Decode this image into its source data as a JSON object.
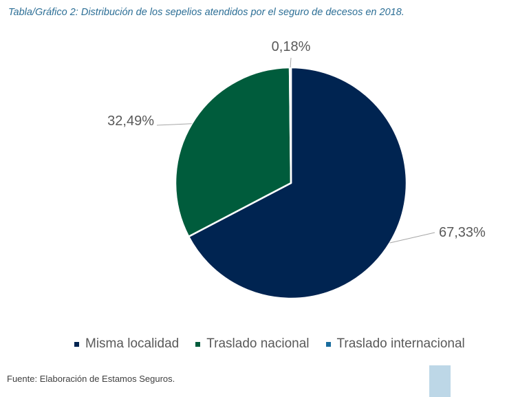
{
  "caption": "Tabla/Gráfico 2: Distribución de los sepelios atendidos por el seguro de decesos en 2018.",
  "source_note": "Fuente: Elaboración de Estamos Seguros.",
  "chart_data": {
    "type": "pie",
    "title": "",
    "start_angle_deg": 0,
    "direction": "clockwise",
    "categories": [
      "Misma localidad",
      "Traslado nacional",
      "Traslado internacional"
    ],
    "values": [
      67.33,
      32.49,
      0.18
    ],
    "value_labels": [
      "67,33%",
      "32,49%",
      "0,18%"
    ],
    "colors": [
      "#002451",
      "#005c3c",
      "#1a6d9e"
    ],
    "legend": "bottom",
    "slice_border": "#ffffff"
  },
  "legend": {
    "items": [
      {
        "label": "Misma localidad",
        "color": "#002451"
      },
      {
        "label": "Traslado nacional",
        "color": "#005c3c"
      },
      {
        "label": "Traslado internacional",
        "color": "#1a6d9e"
      }
    ]
  }
}
